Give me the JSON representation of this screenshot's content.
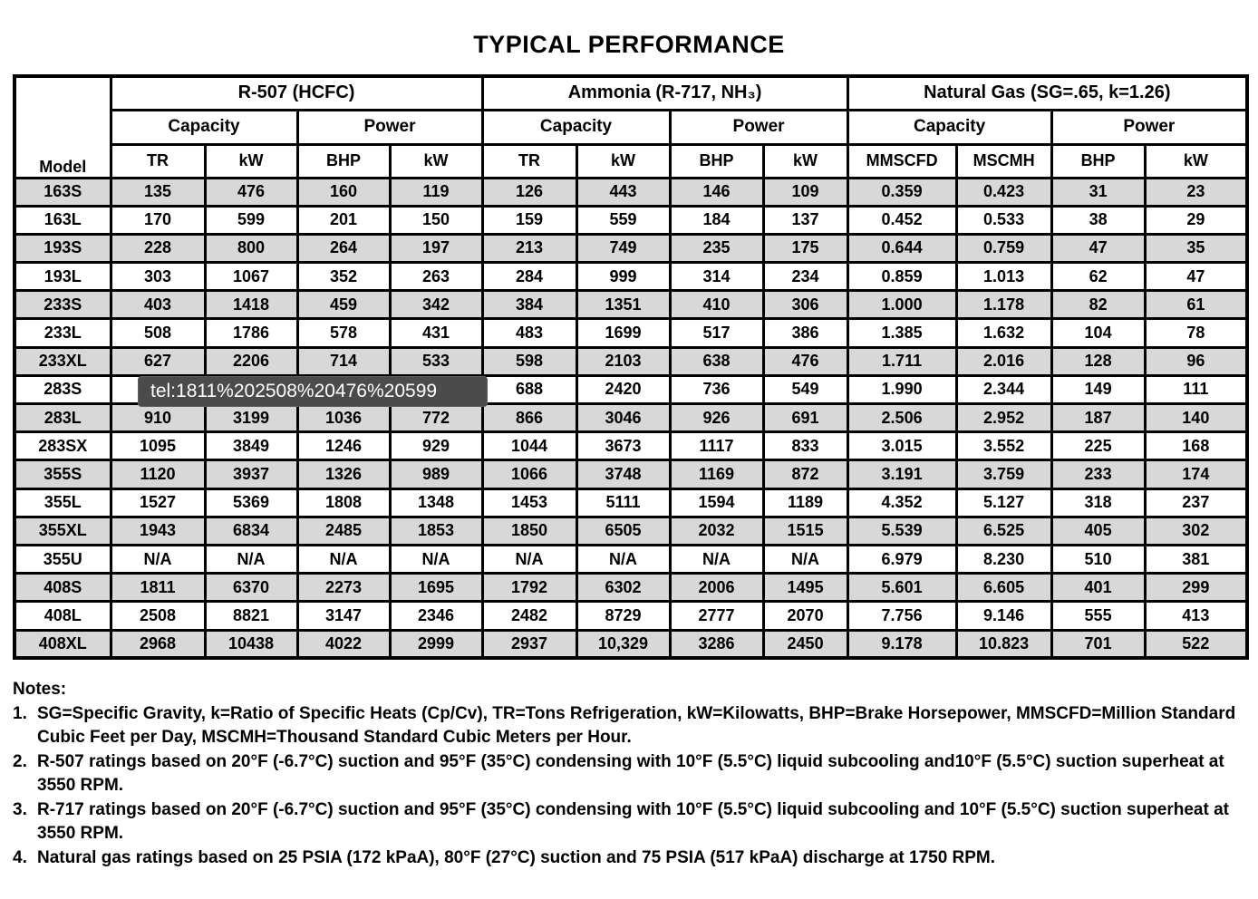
{
  "title": "TYPICAL PERFORMANCE",
  "table": {
    "corner_label": "Model",
    "groups": [
      {
        "label": "R-507 (HCFC)"
      },
      {
        "label": "Ammonia (R-717, NH₃)"
      },
      {
        "label": "Natural Gas (SG=.65, k=1.26)"
      }
    ],
    "subheaders": {
      "capacity": "Capacity",
      "power": "Power"
    },
    "columns": [
      "TR",
      "kW",
      "BHP",
      "kW",
      "TR",
      "kW",
      "BHP",
      "kW",
      "MMSCFD",
      "MSCMH",
      "BHP",
      "kW"
    ],
    "rows": [
      {
        "model": "163S",
        "cells": [
          "135",
          "476",
          "160",
          "119",
          "126",
          "443",
          "146",
          "109",
          "0.359",
          "0.423",
          "31",
          "23"
        ]
      },
      {
        "model": "163L",
        "cells": [
          "170",
          "599",
          "201",
          "150",
          "159",
          "559",
          "184",
          "137",
          "0.452",
          "0.533",
          "38",
          "29"
        ]
      },
      {
        "model": "193S",
        "cells": [
          "228",
          "800",
          "264",
          "197",
          "213",
          "749",
          "235",
          "175",
          "0.644",
          "0.759",
          "47",
          "35"
        ]
      },
      {
        "model": "193L",
        "cells": [
          "303",
          "1067",
          "352",
          "263",
          "284",
          "999",
          "314",
          "234",
          "0.859",
          "1.013",
          "62",
          "47"
        ]
      },
      {
        "model": "233S",
        "cells": [
          "403",
          "1418",
          "459",
          "342",
          "384",
          "1351",
          "410",
          "306",
          "1.000",
          "1.178",
          "82",
          "61"
        ]
      },
      {
        "model": "233L",
        "cells": [
          "508",
          "1786",
          "578",
          "431",
          "483",
          "1699",
          "517",
          "386",
          "1.385",
          "1.632",
          "104",
          "78"
        ]
      },
      {
        "model": "233XL",
        "cells": [
          "627",
          "2206",
          "714",
          "533",
          "598",
          "2103",
          "638",
          "476",
          "1.711",
          "2.016",
          "128",
          "96"
        ]
      },
      {
        "model": "283S",
        "cells": [
          "",
          "",
          "",
          "",
          "688",
          "2420",
          "736",
          "549",
          "1.990",
          "2.344",
          "149",
          "111"
        ]
      },
      {
        "model": "283L",
        "cells": [
          "910",
          "3199",
          "1036",
          "772",
          "866",
          "3046",
          "926",
          "691",
          "2.506",
          "2.952",
          "187",
          "140"
        ]
      },
      {
        "model": "283SX",
        "cells": [
          "1095",
          "3849",
          "1246",
          "929",
          "1044",
          "3673",
          "1117",
          "833",
          "3.015",
          "3.552",
          "225",
          "168"
        ]
      },
      {
        "model": "355S",
        "cells": [
          "1120",
          "3937",
          "1326",
          "989",
          "1066",
          "3748",
          "1169",
          "872",
          "3.191",
          "3.759",
          "233",
          "174"
        ]
      },
      {
        "model": "355L",
        "cells": [
          "1527",
          "5369",
          "1808",
          "1348",
          "1453",
          "5111",
          "1594",
          "1189",
          "4.352",
          "5.127",
          "318",
          "237"
        ]
      },
      {
        "model": "355XL",
        "cells": [
          "1943",
          "6834",
          "2485",
          "1853",
          "1850",
          "6505",
          "2032",
          "1515",
          "5.539",
          "6.525",
          "405",
          "302"
        ]
      },
      {
        "model": "355U",
        "cells": [
          "N/A",
          "N/A",
          "N/A",
          "N/A",
          "N/A",
          "N/A",
          "N/A",
          "N/A",
          "6.979",
          "8.230",
          "510",
          "381"
        ]
      },
      {
        "model": "408S",
        "cells": [
          "1811",
          "6370",
          "2273",
          "1695",
          "1792",
          "6302",
          "2006",
          "1495",
          "5.601",
          "6.605",
          "401",
          "299"
        ]
      },
      {
        "model": "408L",
        "cells": [
          "2508",
          "8821",
          "3147",
          "2346",
          "2482",
          "8729",
          "2777",
          "2070",
          "7.756",
          "9.146",
          "555",
          "413"
        ]
      },
      {
        "model": "408XL",
        "cells": [
          "2968",
          "10438",
          "4022",
          "2999",
          "2937",
          "10,329",
          "3286",
          "2450",
          "9.178",
          "10.823",
          "701",
          "522"
        ]
      }
    ]
  },
  "tooltip": {
    "text": "tel:1811%202508%20476%20599"
  },
  "notes": {
    "heading": "Notes:",
    "items": [
      {
        "num": "1.",
        "text": "SG=Specific Gravity, k=Ratio of Specific Heats (Cp/Cv), TR=Tons Refrigeration, kW=Kilowatts, BHP=Brake Horsepower, MMSCFD=Million Standard Cubic Feet per Day, MSCMH=Thousand Standard Cubic Meters per Hour."
      },
      {
        "num": "2.",
        "text": "R-507 ratings based on 20°F (-6.7°C) suction and 95°F (35°C) condensing with 10°F (5.5°C) liquid subcooling and10°F (5.5°C) suction superheat at 3550 RPM."
      },
      {
        "num": "3.",
        "text": "R-717 ratings based on 20°F (-6.7°C) suction and 95°F (35°C) condensing with 10°F (5.5°C) liquid subcooling and 10°F (5.5°C) suction superheat at 3550 RPM."
      },
      {
        "num": "4.",
        "text": "Natural gas ratings based on 25 PSIA (172 kPaA), 80°F (27°C) suction and 75 PSIA (517 kPaA) discharge at 1750 RPM."
      }
    ]
  }
}
